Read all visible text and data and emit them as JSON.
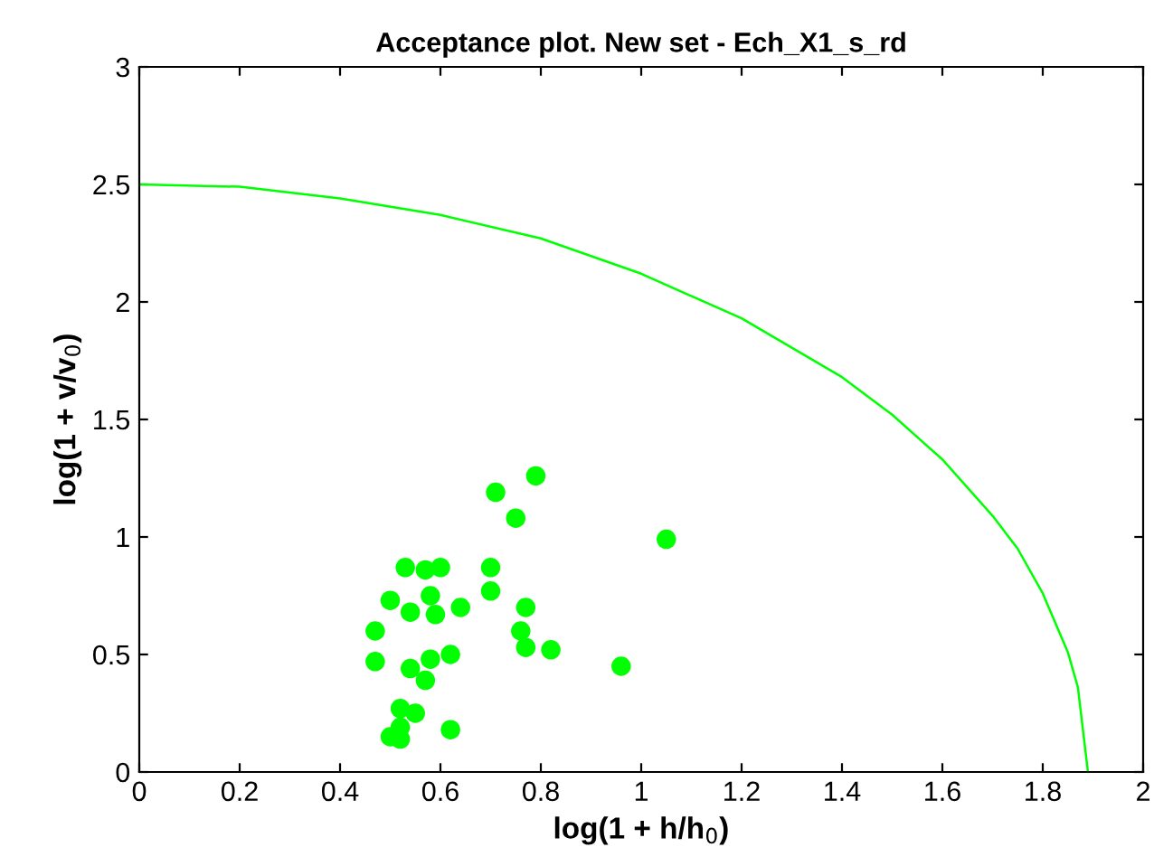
{
  "chart_data": {
    "type": "scatter",
    "title": "Acceptance plot. New set - Ech_X1_s_rd",
    "xlabel": "log(1 + h/h$_{0}$)",
    "ylabel": "log(1 + v/v$_{0}$)",
    "xlim": [
      0,
      2
    ],
    "ylim": [
      0,
      3
    ],
    "xticks": [
      0,
      0.2,
      0.4,
      0.6,
      0.8,
      1,
      1.2,
      1.4,
      1.6,
      1.8,
      2
    ],
    "yticks": [
      0,
      0.5,
      1,
      1.5,
      2,
      2.5,
      3
    ],
    "grid": false,
    "legend": false,
    "series": [
      {
        "type": "line",
        "color": "#00ff00",
        "marker": "none",
        "line_style": "solid",
        "x": [
          0,
          0.2,
          0.4,
          0.6,
          0.8,
          1.0,
          1.2,
          1.4,
          1.5,
          1.6,
          1.7,
          1.75,
          1.8,
          1.85,
          1.87,
          1.89
        ],
        "values": [
          2.5,
          2.49,
          2.44,
          2.37,
          2.27,
          2.12,
          1.93,
          1.68,
          1.52,
          1.33,
          1.09,
          0.95,
          0.76,
          0.51,
          0.36,
          0
        ]
      },
      {
        "color": "#00ff00",
        "marker": "circle",
        "x": [
          0.79,
          0.71,
          0.75,
          1.05,
          0.53,
          0.57,
          0.6,
          0.7,
          0.7,
          0.5,
          0.58,
          0.54,
          0.59,
          0.64,
          0.77,
          0.47,
          0.76,
          0.77,
          0.82,
          0.62,
          0.47,
          0.58,
          0.54,
          0.57,
          0.96,
          0.52,
          0.55,
          0.62,
          0.52,
          0.5,
          0.52
        ],
        "values": [
          1.26,
          1.19,
          1.08,
          0.99,
          0.87,
          0.86,
          0.87,
          0.87,
          0.77,
          0.73,
          0.75,
          0.68,
          0.67,
          0.7,
          0.7,
          0.6,
          0.6,
          0.53,
          0.52,
          0.5,
          0.47,
          0.48,
          0.44,
          0.39,
          0.45,
          0.27,
          0.25,
          0.18,
          0.19,
          0.15,
          0.14
        ]
      }
    ]
  }
}
